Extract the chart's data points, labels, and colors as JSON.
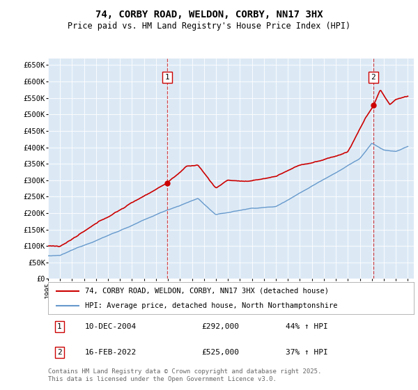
{
  "title": "74, CORBY ROAD, WELDON, CORBY, NN17 3HX",
  "subtitle": "Price paid vs. HM Land Registry's House Price Index (HPI)",
  "ylabel_ticks": [
    "£0",
    "£50K",
    "£100K",
    "£150K",
    "£200K",
    "£250K",
    "£300K",
    "£350K",
    "£400K",
    "£450K",
    "£500K",
    "£550K",
    "£600K",
    "£650K"
  ],
  "ytick_values": [
    0,
    50000,
    100000,
    150000,
    200000,
    250000,
    300000,
    350000,
    400000,
    450000,
    500000,
    550000,
    600000,
    650000
  ],
  "ylim": [
    0,
    670000
  ],
  "xlim_start": 1995.0,
  "xlim_end": 2025.5,
  "bg_color": "#dce9f5",
  "fig_bg_color": "#ffffff",
  "sale1_x": 2004.94,
  "sale1_y": 292000,
  "sale1_label": "1",
  "sale1_date": "10-DEC-2004",
  "sale1_price": "£292,000",
  "sale1_hpi": "44% ↑ HPI",
  "sale2_x": 2022.12,
  "sale2_y": 525000,
  "sale2_label": "2",
  "sale2_date": "16-FEB-2022",
  "sale2_price": "£525,000",
  "sale2_hpi": "37% ↑ HPI",
  "legend_line1": "74, CORBY ROAD, WELDON, CORBY, NN17 3HX (detached house)",
  "legend_line2": "HPI: Average price, detached house, North Northamptonshire",
  "footnote": "Contains HM Land Registry data © Crown copyright and database right 2025.\nThis data is licensed under the Open Government Licence v3.0.",
  "red_color": "#cc0000",
  "blue_color": "#6699cc",
  "xticks": [
    1995,
    1996,
    1997,
    1998,
    1999,
    2000,
    2001,
    2002,
    2003,
    2004,
    2005,
    2006,
    2007,
    2008,
    2009,
    2010,
    2011,
    2012,
    2013,
    2014,
    2015,
    2016,
    2017,
    2018,
    2019,
    2020,
    2021,
    2022,
    2023,
    2024,
    2025
  ]
}
